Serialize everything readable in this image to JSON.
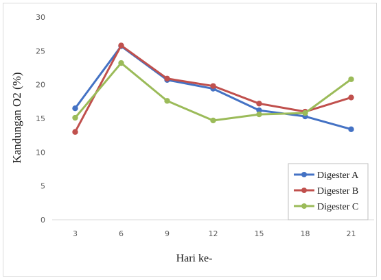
{
  "chart_data": {
    "type": "line",
    "xlabel": "Hari ke-",
    "ylabel": "Kandungan  O2  (%)",
    "ylim": [
      0,
      30
    ],
    "y_ticks": [
      0,
      5,
      10,
      15,
      20,
      25,
      30
    ],
    "categories": [
      "3",
      "6",
      "9",
      "12",
      "15",
      "18",
      "21"
    ],
    "grid": false,
    "legend_position": "bottom-right",
    "series": [
      {
        "name": "Digester A",
        "color": "#4472c4",
        "values": [
          16.5,
          25.7,
          20.7,
          19.4,
          16.2,
          15.3,
          13.4
        ]
      },
      {
        "name": "Digester B",
        "color": "#c0504d",
        "values": [
          13.0,
          25.8,
          20.9,
          19.8,
          17.2,
          16.0,
          18.1
        ]
      },
      {
        "name": "Digester C",
        "color": "#9bbb59",
        "values": [
          15.1,
          23.2,
          17.6,
          14.7,
          15.6,
          15.8,
          20.8
        ]
      }
    ]
  }
}
